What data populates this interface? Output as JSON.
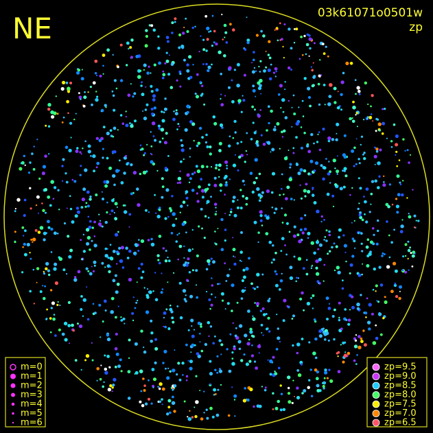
{
  "header": {
    "direction": "NE",
    "image_id": "03k61071o0501w",
    "mode": "zp"
  },
  "legend_m": [
    "m=0",
    "m=1",
    "m=2",
    "m=3",
    "m=4",
    "m=5",
    "m=6"
  ],
  "legend_zp": [
    "zp=9.5",
    "zp=9.0",
    "zp=8.5",
    "zp=8.0",
    "zp=7.5",
    "zp=7.0",
    "zp=6.5"
  ]
}
